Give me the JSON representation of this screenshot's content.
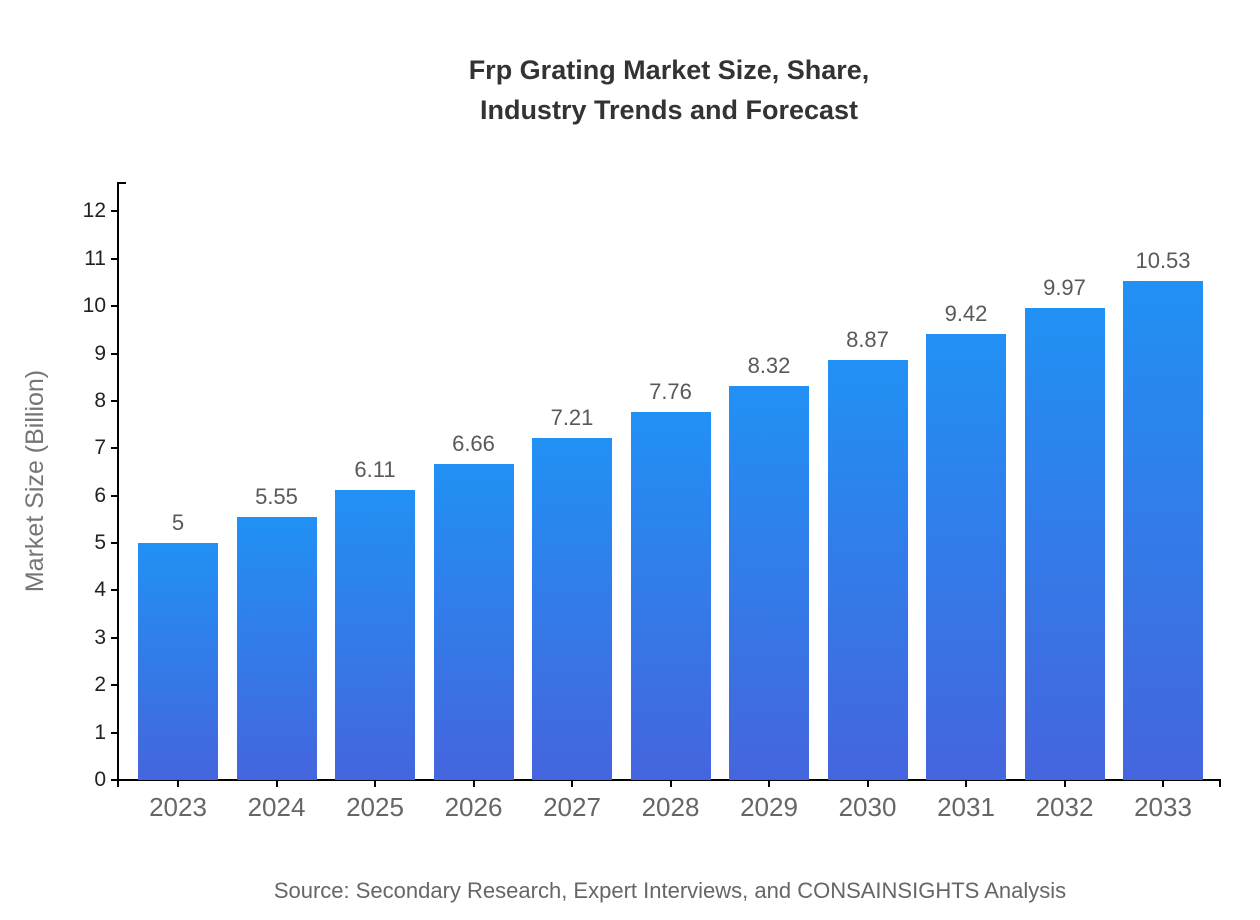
{
  "title": {
    "line1": "Frp Grating Market Size, Share,",
    "line2": "Industry Trends and Forecast"
  },
  "source": "Source: Secondary Research, Expert Interviews, and CONSAINSIGHTS Analysis",
  "chart_data": {
    "type": "bar",
    "title": "Frp Grating Market Size, Share, Industry Trends and Forecast",
    "categories": [
      "2023",
      "2024",
      "2025",
      "2026",
      "2027",
      "2028",
      "2029",
      "2030",
      "2031",
      "2032",
      "2033"
    ],
    "values": [
      5,
      5.55,
      6.11,
      6.66,
      7.21,
      7.76,
      8.32,
      8.87,
      9.42,
      9.97,
      10.53
    ],
    "value_labels": [
      "5",
      "5.55",
      "6.11",
      "6.66",
      "7.21",
      "7.76",
      "8.32",
      "8.87",
      "9.42",
      "9.97",
      "10.53"
    ],
    "xlabel": "",
    "ylabel": "Market Size (Billion)",
    "ylim": [
      0,
      12
    ],
    "yticks": [
      0,
      1,
      2,
      3,
      4,
      5,
      6,
      7,
      8,
      9,
      10,
      11,
      12
    ],
    "grid": false,
    "legend": false,
    "colors": {
      "bar_gradient_top": "#2191F4",
      "bar_gradient_bottom": "#4565DD",
      "axis": "#000000",
      "title_text": "#333333",
      "y_tick_text": "#222222",
      "x_tick_text": "#666666",
      "value_label_text": "#595959",
      "y_axis_title_text": "#757575",
      "source_text": "#666666"
    }
  }
}
